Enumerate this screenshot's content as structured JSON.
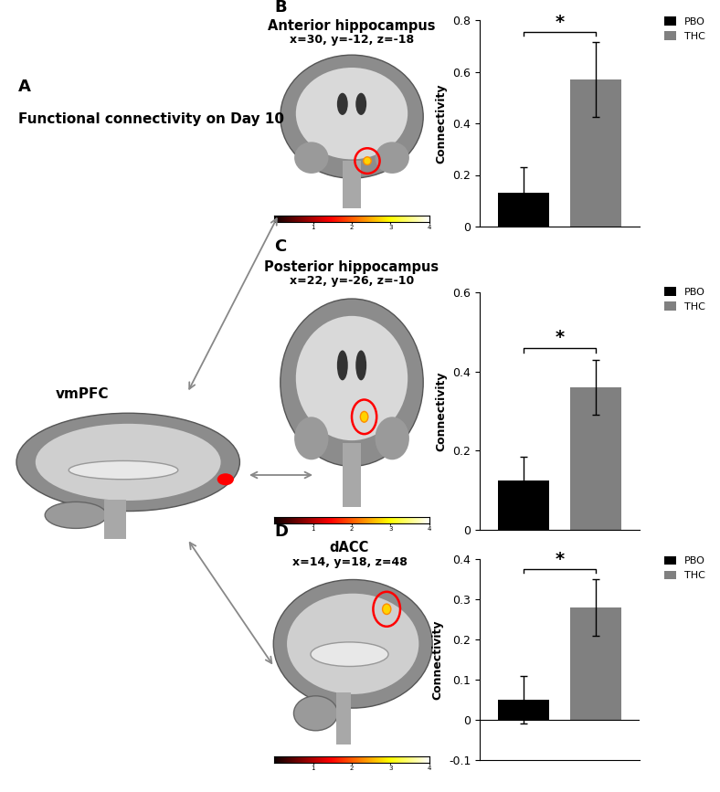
{
  "panel": "A",
  "heading": "Functional connectivity on Day 10",
  "seed_region": "vmPFC",
  "chart_data": [
    {
      "type": "bar",
      "panel": "B",
      "title": "Anterior hippocampus",
      "subtitle": "x=30, y=-12, z=-18",
      "y_label": "Connectivity",
      "categories": [
        "PBO",
        "THC"
      ],
      "values": [
        0.13,
        0.57
      ],
      "errors": [
        0.1,
        0.145
      ],
      "colors": [
        "#000000",
        "#808080"
      ],
      "ylim": [
        0,
        0.8
      ],
      "yticks": [
        0,
        0.2,
        0.4,
        0.6,
        0.8
      ],
      "legend": "upper right",
      "tick_labels": "y",
      "annotation": "*",
      "colorbar_range": [
        0,
        4
      ],
      "colorbar_ticks": [
        1,
        2,
        3,
        4
      ]
    },
    {
      "type": "bar",
      "panel": "C",
      "title": "Posterior hippocampus",
      "subtitle": "x=22, y=-26, z=-10",
      "y_label": "Connectivity",
      "categories": [
        "PBO",
        "THC"
      ],
      "values": [
        0.125,
        0.36
      ],
      "errors": [
        0.06,
        0.07
      ],
      "colors": [
        "#000000",
        "#808080"
      ],
      "ylim": [
        0,
        0.6
      ],
      "yticks": [
        0,
        0.2,
        0.4,
        0.6
      ],
      "legend": "upper right",
      "tick_labels": "y",
      "annotation": "*",
      "colorbar_range": [
        0,
        4
      ],
      "colorbar_ticks": [
        1,
        2,
        3,
        4
      ]
    },
    {
      "type": "bar",
      "panel": "D",
      "title": "dACC",
      "subtitle": "x=14, y=18, z=48",
      "y_label": "Connectivity",
      "categories": [
        "PBO",
        "THC"
      ],
      "values": [
        0.05,
        0.28
      ],
      "errors": [
        0.06,
        0.07
      ],
      "colors": [
        "#000000",
        "#808080"
      ],
      "ylim": [
        -0.1,
        0.4
      ],
      "yticks": [
        -0.1,
        0,
        0.1,
        0.2,
        0.3,
        0.4
      ],
      "legend": "upper right",
      "tick_labels": "y",
      "annotation": "*",
      "colorbar_range": [
        0,
        4
      ],
      "colorbar_ticks": [
        1,
        2,
        3,
        4
      ]
    }
  ]
}
